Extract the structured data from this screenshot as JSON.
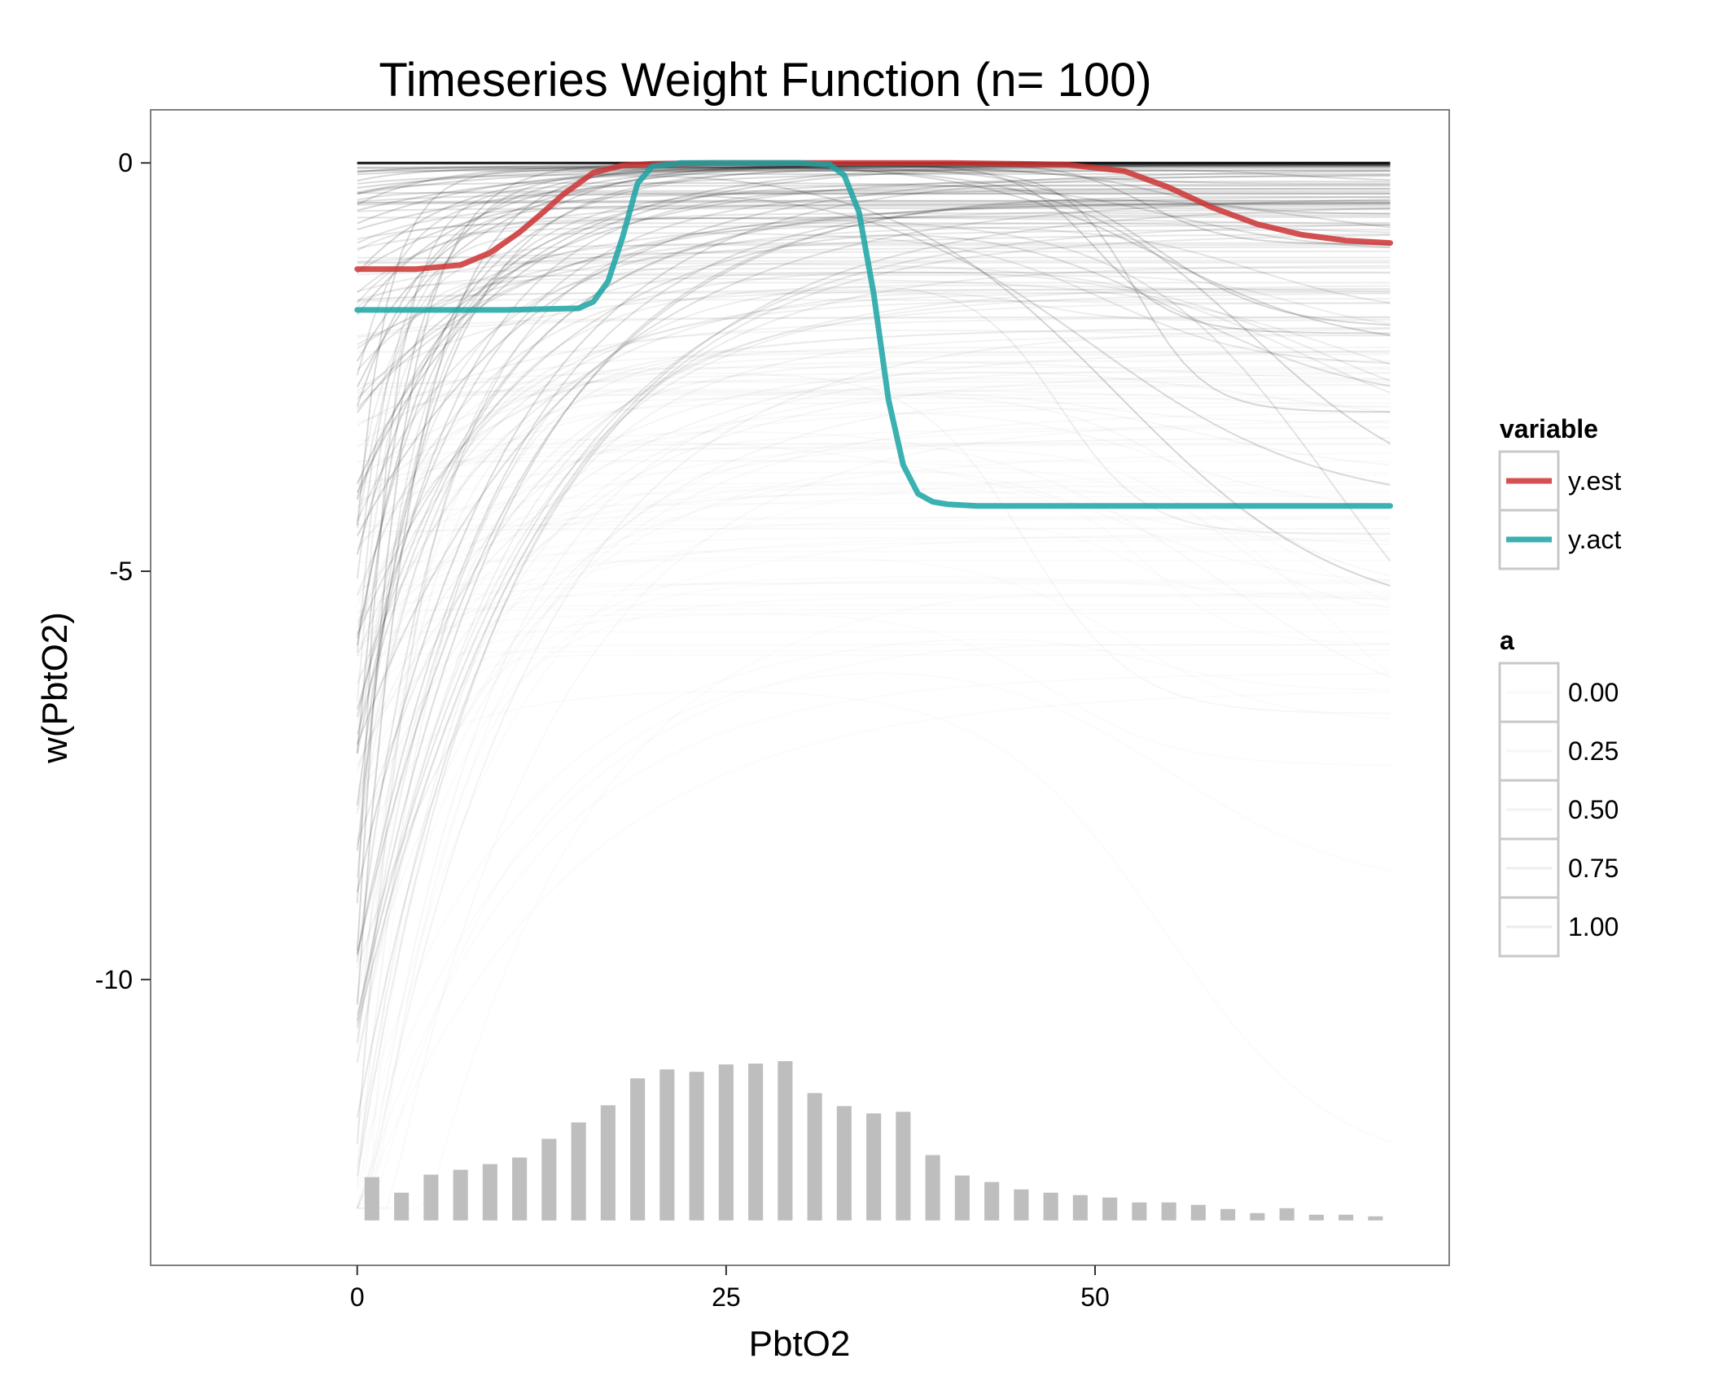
{
  "chart_data": {
    "type": "line",
    "title": "Timeseries Weight Function (n= 100)",
    "xlabel": "PbtO2",
    "ylabel": "w(PbtO2)",
    "xlim": [
      -14,
      74
    ],
    "ylim": [
      -13.5,
      0.65
    ],
    "x_ticks": [
      {
        "value": 0,
        "label": "0"
      },
      {
        "value": 25,
        "label": "25"
      },
      {
        "value": 50,
        "label": "50"
      }
    ],
    "y_ticks": [
      {
        "value": 0,
        "label": "0"
      },
      {
        "value": -5,
        "label": "-5"
      },
      {
        "value": -10,
        "label": "-10"
      }
    ],
    "grid": false,
    "colors": {
      "y_est": "#cc3333",
      "y_act": "#1aa3a3",
      "histogram": "#bebebe",
      "background_lines": "#000000"
    },
    "series": [
      {
        "name": "y.est",
        "color": "#cc3333",
        "x": [
          0,
          4,
          7,
          9,
          11,
          12.5,
          14,
          16,
          18,
          20,
          24,
          30,
          40,
          48,
          52,
          55,
          58,
          61,
          64,
          67,
          70
        ],
        "y": [
          -1.3,
          -1.3,
          -1.25,
          -1.1,
          -0.85,
          -0.62,
          -0.38,
          -0.12,
          -0.03,
          -0.01,
          0,
          0,
          0,
          -0.02,
          -0.1,
          -0.3,
          -0.55,
          -0.75,
          -0.88,
          -0.95,
          -0.98
        ]
      },
      {
        "name": "y.act",
        "color": "#1aa3a3",
        "x": [
          0,
          10,
          15,
          16,
          17,
          18,
          19,
          20,
          22,
          30,
          32,
          33,
          34,
          35,
          36,
          37,
          38,
          39,
          40,
          42,
          50,
          60,
          70
        ],
        "y": [
          -1.8,
          -1.8,
          -1.78,
          -1.7,
          -1.45,
          -0.9,
          -0.25,
          -0.04,
          0,
          0,
          -0.02,
          -0.15,
          -0.6,
          -1.6,
          -2.9,
          -3.7,
          -4.05,
          -4.15,
          -4.18,
          -4.2,
          -4.2,
          -4.2,
          -4.2
        ]
      }
    ],
    "histogram": {
      "x": [
        1,
        3,
        5,
        7,
        9,
        11,
        13,
        15,
        17,
        19,
        21,
        23,
        25,
        27,
        29,
        31,
        33,
        35,
        37,
        39,
        41,
        43,
        45,
        47,
        49,
        51,
        53,
        55,
        57,
        59,
        61,
        63,
        65,
        67,
        69
      ],
      "height": [
        0.53,
        0.34,
        0.56,
        0.62,
        0.69,
        0.77,
        1.0,
        1.2,
        1.41,
        1.74,
        1.85,
        1.82,
        1.91,
        1.92,
        1.95,
        1.56,
        1.4,
        1.31,
        1.33,
        0.8,
        0.55,
        0.47,
        0.38,
        0.34,
        0.31,
        0.28,
        0.22,
        0.22,
        0.19,
        0.14,
        0.09,
        0.15,
        0.07,
        0.07,
        0.05
      ]
    },
    "background_series": {
      "count": 200,
      "alpha_range": [
        0,
        1
      ]
    },
    "legend": {
      "placement": "right",
      "groups": [
        {
          "title": "variable",
          "entries": [
            {
              "label": "y.est",
              "color": "#cc3333"
            },
            {
              "label": "y.act",
              "color": "#1aa3a3"
            }
          ]
        },
        {
          "title": "a",
          "entries": [
            {
              "label": "0.00"
            },
            {
              "label": "0.25"
            },
            {
              "label": "0.50"
            },
            {
              "label": "0.75"
            },
            {
              "label": "1.00"
            }
          ]
        }
      ]
    }
  }
}
